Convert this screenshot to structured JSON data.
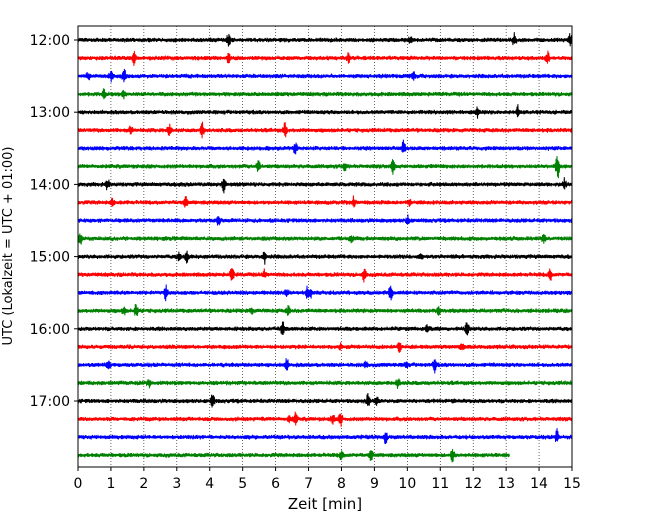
{
  "chart_data": {
    "type": "line",
    "title": "",
    "xlabel": "Zeit  [min]",
    "ylabel": "UTC (Lokalzeit = UTC + 01:00)",
    "xlim": [
      0,
      15
    ],
    "x_ticks": [
      "0",
      "1",
      "2",
      "3",
      "4",
      "5",
      "6",
      "7",
      "8",
      "9",
      "10",
      "11",
      "12",
      "13",
      "14",
      "15"
    ],
    "y_tick_labels": [
      "12:00",
      "13:00",
      "14:00",
      "15:00",
      "16:00",
      "17:00"
    ],
    "grid": "vertical dotted lines at each minute",
    "row_interval_minutes": 15,
    "series": [
      {
        "row": "12:00",
        "color": "#000000",
        "end_min": 15
      },
      {
        "row": "12:15",
        "color": "#ff0000",
        "end_min": 15
      },
      {
        "row": "12:30",
        "color": "#0000ff",
        "end_min": 15
      },
      {
        "row": "12:45",
        "color": "#008000",
        "end_min": 15
      },
      {
        "row": "13:00",
        "color": "#000000",
        "end_min": 15
      },
      {
        "row": "13:15",
        "color": "#ff0000",
        "end_min": 15
      },
      {
        "row": "13:30",
        "color": "#0000ff",
        "end_min": 15
      },
      {
        "row": "13:45",
        "color": "#008000",
        "end_min": 15
      },
      {
        "row": "14:00",
        "color": "#000000",
        "end_min": 15
      },
      {
        "row": "14:15",
        "color": "#ff0000",
        "end_min": 15
      },
      {
        "row": "14:30",
        "color": "#0000ff",
        "end_min": 15
      },
      {
        "row": "14:45",
        "color": "#008000",
        "end_min": 15
      },
      {
        "row": "15:00",
        "color": "#000000",
        "end_min": 15
      },
      {
        "row": "15:15",
        "color": "#ff0000",
        "end_min": 15
      },
      {
        "row": "15:30",
        "color": "#0000ff",
        "end_min": 15
      },
      {
        "row": "15:45",
        "color": "#008000",
        "end_min": 15
      },
      {
        "row": "16:00",
        "color": "#000000",
        "end_min": 15
      },
      {
        "row": "16:15",
        "color": "#ff0000",
        "end_min": 15
      },
      {
        "row": "16:30",
        "color": "#0000ff",
        "end_min": 15
      },
      {
        "row": "16:45",
        "color": "#008000",
        "end_min": 15
      },
      {
        "row": "17:00",
        "color": "#000000",
        "end_min": 15
      },
      {
        "row": "17:15",
        "color": "#ff0000",
        "end_min": 15
      },
      {
        "row": "17:30",
        "color": "#0000ff",
        "end_min": 15
      },
      {
        "row": "17:45",
        "color": "#008000",
        "end_min": 13.1
      }
    ]
  }
}
